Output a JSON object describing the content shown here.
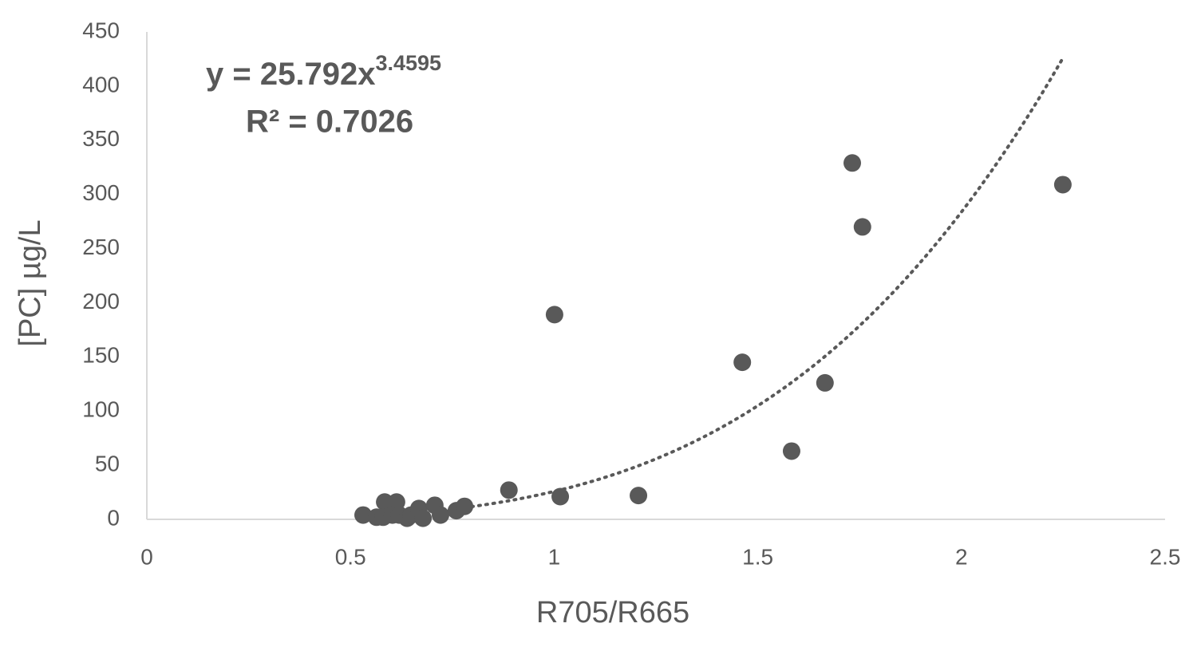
{
  "chart_data": {
    "type": "scatter",
    "x_label": "R705/R665",
    "y_label": "[PC] µg/L",
    "x": [
      0.531,
      0.564,
      0.584,
      0.613,
      0.58,
      0.603,
      0.62,
      0.639,
      0.649,
      0.668,
      0.678,
      0.707,
      0.721,
      0.76,
      0.78,
      0.889,
      1.015,
      1.001,
      1.207,
      1.462,
      1.583,
      1.665,
      1.732,
      1.757,
      2.249
    ],
    "values": [
      4,
      2,
      16,
      16,
      2,
      4,
      4,
      1,
      4,
      10,
      1,
      13,
      4,
      8,
      12,
      27,
      21,
      189,
      22,
      145,
      63,
      126,
      329,
      270,
      309
    ],
    "color": "#595959",
    "xlim": [
      0,
      2.5
    ],
    "xticks": [
      0,
      0.5,
      1,
      1.5,
      2,
      2.5
    ],
    "ylim": [
      0,
      450
    ],
    "yticks": [
      0,
      50,
      100,
      150,
      200,
      250,
      300,
      350,
      400,
      450
    ],
    "trendline": {
      "equation": [
        "y = ",
        25.792,
        "x",
        3.4595
      ],
      "r2_label": "R² = 0.7026"
    }
  }
}
